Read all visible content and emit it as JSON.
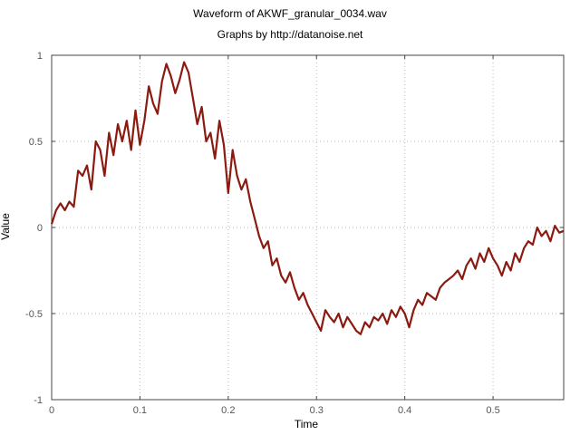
{
  "chart_data": {
    "type": "line",
    "title": "Waveform of AKWF_granular_0034.wav",
    "subtitle": "Graphs by http://datanoise.net",
    "xlabel": "Time",
    "ylabel": "Value",
    "xlim": [
      0,
      0.58
    ],
    "ylim": [
      -1,
      1
    ],
    "xticks": [
      0,
      0.1,
      0.2,
      0.3,
      0.4,
      0.5
    ],
    "xtick_labels": [
      "0",
      "0.1",
      "0.2",
      "0.3",
      "0.4",
      "0.5"
    ],
    "yticks": [
      -1,
      -0.5,
      0,
      0.5,
      1
    ],
    "ytick_labels": [
      "-1",
      "-0.5",
      "0",
      "0.5",
      "1"
    ],
    "grid": true,
    "line_color": "#8b1a10",
    "series": [
      {
        "x": [
          0,
          0.005,
          0.01,
          0.015,
          0.02,
          0.025,
          0.03,
          0.035,
          0.04,
          0.045,
          0.05,
          0.055,
          0.06,
          0.065,
          0.07,
          0.075,
          0.08,
          0.085,
          0.09,
          0.095,
          0.1,
          0.105,
          0.11,
          0.115,
          0.12,
          0.125,
          0.13,
          0.135,
          0.14,
          0.145,
          0.15,
          0.155,
          0.16,
          0.165,
          0.17,
          0.175,
          0.18,
          0.185,
          0.19,
          0.195,
          0.2,
          0.205,
          0.21,
          0.215,
          0.22,
          0.225,
          0.23,
          0.235,
          0.24,
          0.245,
          0.25,
          0.255,
          0.26,
          0.265,
          0.27,
          0.275,
          0.28,
          0.285,
          0.29,
          0.295,
          0.3,
          0.305,
          0.31,
          0.315,
          0.32,
          0.325,
          0.33,
          0.335,
          0.34,
          0.345,
          0.35,
          0.355,
          0.36,
          0.365,
          0.37,
          0.375,
          0.38,
          0.385,
          0.39,
          0.395,
          0.4,
          0.405,
          0.41,
          0.415,
          0.42,
          0.425,
          0.43,
          0.435,
          0.44,
          0.445,
          0.45,
          0.455,
          0.46,
          0.465,
          0.47,
          0.475,
          0.48,
          0.485,
          0.49,
          0.495,
          0.5,
          0.505,
          0.51,
          0.515,
          0.52,
          0.525,
          0.53,
          0.535,
          0.54,
          0.545,
          0.55,
          0.555,
          0.56,
          0.565,
          0.57,
          0.575,
          0.58
        ],
        "values": [
          0.02,
          0.1,
          0.14,
          0.1,
          0.15,
          0.12,
          0.33,
          0.3,
          0.36,
          0.22,
          0.5,
          0.45,
          0.3,
          0.55,
          0.42,
          0.6,
          0.5,
          0.62,
          0.45,
          0.68,
          0.48,
          0.62,
          0.82,
          0.72,
          0.66,
          0.85,
          0.95,
          0.88,
          0.78,
          0.86,
          0.96,
          0.9,
          0.75,
          0.6,
          0.7,
          0.5,
          0.55,
          0.4,
          0.62,
          0.48,
          0.2,
          0.45,
          0.3,
          0.22,
          0.28,
          0.15,
          0.05,
          -0.05,
          -0.12,
          -0.08,
          -0.22,
          -0.18,
          -0.28,
          -0.32,
          -0.26,
          -0.35,
          -0.42,
          -0.38,
          -0.45,
          -0.5,
          -0.55,
          -0.6,
          -0.48,
          -0.52,
          -0.55,
          -0.5,
          -0.58,
          -0.52,
          -0.56,
          -0.6,
          -0.62,
          -0.55,
          -0.58,
          -0.52,
          -0.54,
          -0.5,
          -0.56,
          -0.48,
          -0.52,
          -0.46,
          -0.5,
          -0.58,
          -0.48,
          -0.42,
          -0.45,
          -0.38,
          -0.4,
          -0.42,
          -0.35,
          -0.32,
          -0.3,
          -0.28,
          -0.25,
          -0.3,
          -0.22,
          -0.18,
          -0.24,
          -0.15,
          -0.2,
          -0.12,
          -0.18,
          -0.22,
          -0.28,
          -0.2,
          -0.25,
          -0.15,
          -0.2,
          -0.12,
          -0.08,
          -0.1,
          0.0,
          -0.05,
          -0.02,
          -0.08,
          0.01,
          -0.03,
          -0.02
        ]
      }
    ]
  }
}
